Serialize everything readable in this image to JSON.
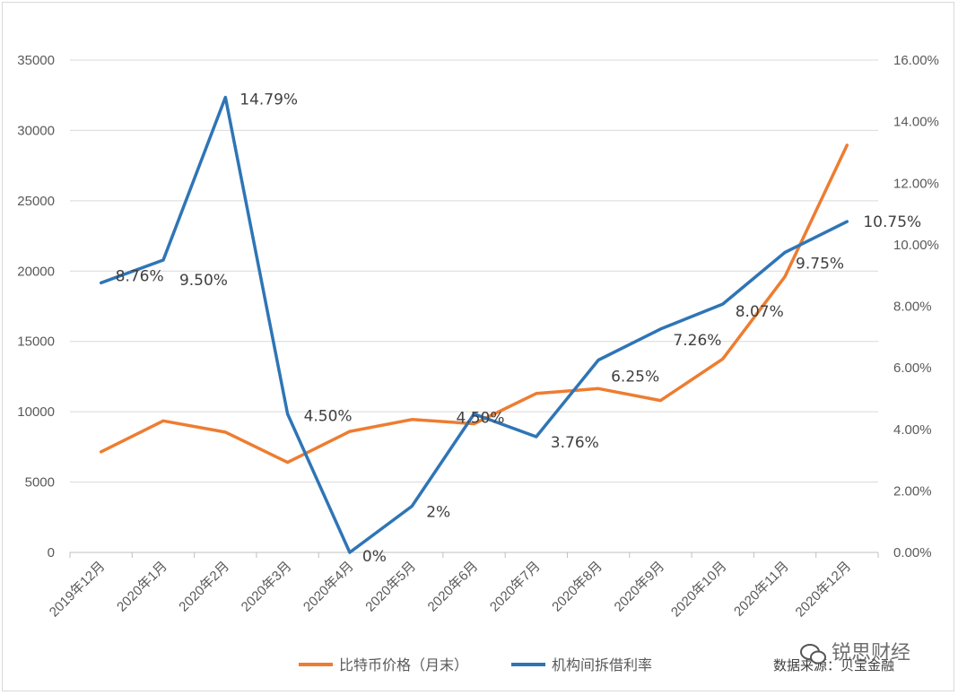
{
  "chart_data": {
    "type": "line",
    "categories": [
      "2019年12月",
      "2020年1月",
      "2020年2月",
      "2020年3月",
      "2020年4月",
      "2020年5月",
      "2020年6月",
      "2020年7月",
      "2020年8月",
      "2020年9月",
      "2020年10月",
      "2020年11月",
      "2020年12月"
    ],
    "left_axis": {
      "ylim": [
        0,
        35000
      ],
      "ticks": [
        "0",
        "5000",
        "10000",
        "15000",
        "20000",
        "25000",
        "30000",
        "35000"
      ]
    },
    "right_axis": {
      "ylim": [
        0,
        16
      ],
      "ticks": [
        "0.00%",
        "2.00%",
        "4.00%",
        "6.00%",
        "8.00%",
        "10.00%",
        "12.00%",
        "14.00%",
        "16.00%"
      ]
    },
    "series": [
      {
        "name": "比特币价格（月末）",
        "axis": "left",
        "color": "#ED7D31",
        "values": [
          7150,
          9350,
          8550,
          6400,
          8600,
          9450,
          9150,
          11300,
          11650,
          10800,
          13750,
          19600,
          28950
        ]
      },
      {
        "name": "机构间拆借利率",
        "axis": "right",
        "color": "#2E75B6",
        "values": [
          8.76,
          9.5,
          14.79,
          4.5,
          0,
          1.5,
          4.5,
          3.76,
          6.25,
          7.26,
          8.07,
          9.75,
          10.75
        ],
        "labels": [
          "8.76%",
          "9.50%",
          "14.79%",
          "4.50%",
          "0%",
          "2%",
          "4.50%",
          "3.76%",
          "6.25%",
          "7.26%",
          "8.07%",
          "9.75%",
          "10.75%"
        ]
      }
    ],
    "grid": true,
    "legend": "bottom"
  },
  "source": "数据来源：贝宝金融",
  "watermark": "锐思财经"
}
